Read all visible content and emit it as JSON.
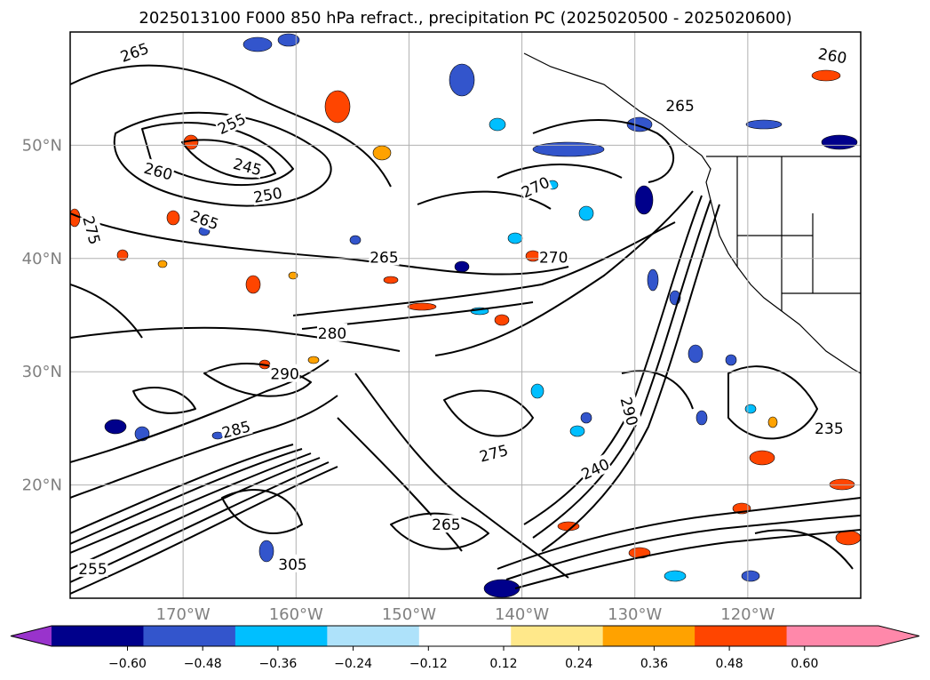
{
  "chart_data": {
    "type": "contour-map",
    "title": "2025013100 F000 850 hPa refract., precipitation PC (2025020500 - 2025020600)",
    "xlim": [
      -180,
      -110
    ],
    "ylim": [
      10,
      60
    ],
    "lat_ticks": [
      {
        "value": 50,
        "label": "50°N"
      },
      {
        "value": 40,
        "label": "40°N"
      },
      {
        "value": 30,
        "label": "30°N"
      },
      {
        "value": 20,
        "label": "20°N"
      }
    ],
    "lon_ticks": [
      {
        "value": -170,
        "label": "170°W"
      },
      {
        "value": -160,
        "label": "160°W"
      },
      {
        "value": -150,
        "label": "150°W"
      },
      {
        "value": -140,
        "label": "140°W"
      },
      {
        "value": -130,
        "label": "130°W"
      },
      {
        "value": -120,
        "label": "120°W"
      }
    ],
    "grid": true,
    "colorbar": {
      "orientation": "horizontal",
      "extend": "both",
      "bounds": [
        -0.6,
        -0.48,
        -0.36,
        -0.24,
        -0.12,
        0.12,
        0.24,
        0.36,
        0.48,
        0.6
      ],
      "tick_labels": [
        "−0.60",
        "−0.48",
        "−0.36",
        "−0.24",
        "−0.12",
        "0.12",
        "0.24",
        "0.36",
        "0.48",
        "0.60"
      ],
      "colors": [
        "#9933cc",
        "#00008b",
        "#3355cc",
        "#00bfff",
        "#aee2fa",
        "#ffffff",
        "#ffe88a",
        "#ffa200",
        "#ff4500",
        "#b22222",
        "#ff88aa"
      ]
    },
    "contour_labels": [
      {
        "text": "265",
        "lon": -174.3,
        "lat": 58.2,
        "rot": -20
      },
      {
        "text": "260",
        "lon": -112.5,
        "lat": 57.9,
        "rot": 10
      },
      {
        "text": "265",
        "lon": -126.0,
        "lat": 53.5,
        "rot": 0
      },
      {
        "text": "255",
        "lon": -165.7,
        "lat": 51.9,
        "rot": -25
      },
      {
        "text": "245",
        "lon": -164.3,
        "lat": 48.1,
        "rot": 15
      },
      {
        "text": "260",
        "lon": -172.2,
        "lat": 47.7,
        "rot": 15
      },
      {
        "text": "250",
        "lon": -162.5,
        "lat": 45.6,
        "rot": -10
      },
      {
        "text": "270",
        "lon": -138.8,
        "lat": 46.3,
        "rot": -25
      },
      {
        "text": "265",
        "lon": -168.1,
        "lat": 43.4,
        "rot": 20
      },
      {
        "text": "275",
        "lon": -178.1,
        "lat": 42.5,
        "rot": 75
      },
      {
        "text": "265",
        "lon": -152.2,
        "lat": 40.1,
        "rot": 0
      },
      {
        "text": "270",
        "lon": -137.2,
        "lat": 40.1,
        "rot": 0
      },
      {
        "text": "280",
        "lon": -156.8,
        "lat": 33.4,
        "rot": 0
      },
      {
        "text": "290",
        "lon": -161.0,
        "lat": 29.8,
        "rot": 0
      },
      {
        "text": "290",
        "lon": -130.5,
        "lat": 26.5,
        "rot": 75
      },
      {
        "text": "285",
        "lon": -165.3,
        "lat": 24.9,
        "rot": -15
      },
      {
        "text": "235",
        "lon": -112.8,
        "lat": 25.0,
        "rot": 0
      },
      {
        "text": "275",
        "lon": -142.5,
        "lat": 22.8,
        "rot": -15
      },
      {
        "text": "240",
        "lon": -133.5,
        "lat": 21.4,
        "rot": -25
      },
      {
        "text": "265",
        "lon": -146.7,
        "lat": 16.5,
        "rot": 0
      },
      {
        "text": "305",
        "lon": -160.3,
        "lat": 13.0,
        "rot": 0
      },
      {
        "text": "255",
        "lon": -178.0,
        "lat": 12.6,
        "rot": 0
      }
    ]
  }
}
